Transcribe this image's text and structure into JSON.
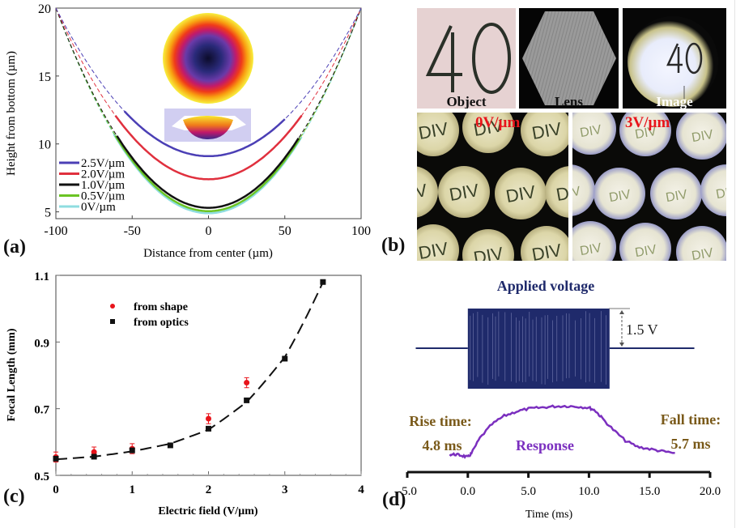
{
  "figure": {
    "panel_labels": {
      "a": "(a)",
      "b": "(b)",
      "c": "(c)",
      "d": "(d)"
    }
  },
  "panel_b": {
    "tiles": [
      {
        "label": "Object",
        "content": "40"
      },
      {
        "label": "Lens",
        "content": "hexagon"
      },
      {
        "label": "Image",
        "content": "40"
      }
    ],
    "microlens_arrays": [
      {
        "field_label": "0V/µm",
        "text": "DIV",
        "state": "sharp"
      },
      {
        "field_label": "3V/µm",
        "text": "DIV",
        "state": "blurred"
      }
    ],
    "label_color": "#e8141b"
  },
  "chart_data": [
    {
      "id": "a",
      "type": "line",
      "title": "",
      "xlabel": "Distance from center (µm)",
      "ylabel": "Height from bottom (µm)",
      "xlim": [
        -100,
        100
      ],
      "ylim": [
        4.5,
        20
      ],
      "xticks": [
        -100,
        -50,
        0,
        50,
        100
      ],
      "yticks": [
        5,
        10,
        15,
        20
      ],
      "xtick_labels": [
        "-100",
        "-50",
        "0",
        "50",
        "100"
      ],
      "ytick_labels": [
        "5",
        "10",
        "15",
        "20"
      ],
      "legend_position": "bottom-left",
      "series": [
        {
          "name": "2.5V/µm",
          "color": "#4b3fb5",
          "min_height": 9.1,
          "edge_height": 20,
          "solid_range": [
            -55,
            50
          ]
        },
        {
          "name": "2.0V/µm",
          "color": "#e0303e",
          "min_height": 7.4,
          "edge_height": 20,
          "solid_range": [
            -61,
            61
          ]
        },
        {
          "name": "1.0V/µm",
          "color": "#111111",
          "min_height": 5.3,
          "edge_height": 20,
          "solid_range": [
            -60,
            59
          ]
        },
        {
          "name": "0.5V/µm",
          "color": "#6bc424",
          "min_height": 5.05,
          "edge_height": 20,
          "solid_range": [
            -61,
            60
          ]
        },
        {
          "name": "0V/µm",
          "color": "#8fdde0",
          "min_height": 4.9,
          "edge_height": 20,
          "solid_range": [
            -62,
            61
          ]
        }
      ],
      "insets": [
        "top-view lens height colormap",
        "3D lens surface"
      ]
    },
    {
      "id": "c",
      "type": "scatter",
      "title": "",
      "xlabel": "Electric field (V/µm)",
      "ylabel": "Focal Length (mm)",
      "xlim": [
        0,
        4
      ],
      "ylim": [
        0.5,
        1.1
      ],
      "xticks": [
        0,
        1,
        2,
        3,
        4
      ],
      "yticks": [
        0.5,
        0.7,
        0.9,
        1.1
      ],
      "xtick_labels": [
        "0",
        "1",
        "2",
        "3",
        "4"
      ],
      "ytick_labels": [
        "0.5",
        "0.7",
        "0.9",
        "1.1"
      ],
      "legend_position": "top-left",
      "series": [
        {
          "name": "from shape",
          "color": "#e8141b",
          "marker": "circle",
          "x": [
            0,
            0.5,
            1.0,
            2.0,
            2.5
          ],
          "y": [
            0.555,
            0.57,
            0.58,
            0.67,
            0.778
          ],
          "err": [
            0.015,
            0.015,
            0.015,
            0.015,
            0.015
          ]
        },
        {
          "name": "from optics",
          "color": "#111111",
          "marker": "square",
          "x": [
            0,
            0.5,
            1.0,
            1.5,
            2.0,
            2.5,
            3.0,
            3.5
          ],
          "y": [
            0.55,
            0.556,
            0.575,
            0.59,
            0.64,
            0.725,
            0.85,
            1.08
          ],
          "err": [
            0.006,
            0.006,
            0.006,
            0.006,
            0.006,
            0.006,
            0.006,
            0.006
          ]
        }
      ],
      "fit": {
        "style": "dashed",
        "color": "#111111",
        "x": [
          0,
          0.5,
          1.0,
          1.5,
          2.0,
          2.5,
          3.0,
          3.5
        ],
        "y": [
          0.548,
          0.556,
          0.572,
          0.595,
          0.637,
          0.72,
          0.855,
          1.08
        ]
      }
    },
    {
      "id": "d",
      "type": "line",
      "title": "",
      "xlabel": "Time (ms)",
      "ylabel": "",
      "xlim": [
        -5,
        20
      ],
      "xticks": [
        -5,
        0,
        5,
        10,
        15,
        20
      ],
      "xtick_labels": [
        "-5.0",
        "0.0",
        "5.0",
        "10.0",
        "15.0",
        "20.0"
      ],
      "annotations": {
        "voltage_title": "Applied voltage",
        "amplitude": "1.5 V",
        "rise_label": "Rise time:",
        "rise_value": "4.8 ms",
        "fall_label": "Fall time:",
        "fall_value": "5.7 ms",
        "response_label": "Response"
      },
      "colors": {
        "voltage": "#1f2a6b",
        "response": "#7b2fbf",
        "annotation": "#7a5a1a"
      },
      "series": [
        {
          "name": "Applied voltage",
          "baseline_range": [
            -4.3,
            18.7
          ],
          "burst_range": [
            0.0,
            11.7
          ],
          "amplitude_V": 1.5
        },
        {
          "name": "Response",
          "x": [
            -1.5,
            -1.0,
            -0.5,
            0.0,
            0.3,
            1.0,
            2.0,
            3.0,
            4.0,
            5.0,
            6.0,
            7.0,
            8.0,
            9.0,
            10.0,
            10.5,
            11.0,
            12.0,
            13.0,
            14.0,
            15.0,
            16.0,
            17.1
          ],
          "y": [
            0.1,
            0.1,
            0.08,
            0.05,
            0.12,
            0.4,
            0.65,
            0.8,
            0.88,
            0.93,
            0.95,
            0.97,
            0.98,
            0.97,
            0.95,
            0.9,
            0.78,
            0.55,
            0.35,
            0.24,
            0.2,
            0.16,
            0.12
          ]
        }
      ]
    }
  ]
}
